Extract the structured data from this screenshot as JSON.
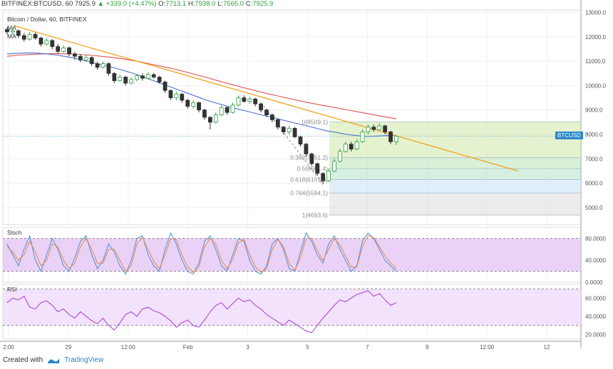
{
  "header": {
    "symbol": "BITFINEX:BTCUSD, 60",
    "last": "7925.9",
    "change": "+339.0 (+4.47%)",
    "o_label": "O:",
    "o": "7713.1",
    "h_label": "H:",
    "h": "7938.0",
    "l_label": "L:",
    "l": "7565.0",
    "c_label": "C:",
    "c": "7925.9"
  },
  "meta": {
    "source": "Bitcoin / Dollar, 60, BITFINEX",
    "ma1": "MA",
    "ma2": "MA"
  },
  "indicators": {
    "stoch_label": "Stoch",
    "rsi_label": "RSI"
  },
  "footer": {
    "created_with": "Created with",
    "brand": "TradingView"
  },
  "price_tag": "BTCUSD",
  "colors": {
    "up": "#2e9e3e",
    "down": "#333333",
    "ma_fast": "#4a6fcf",
    "ma_slow": "#e05050",
    "trendline": "#f2a31d",
    "stoch_k": "#4a90d9",
    "stoch_d": "#e08a4a",
    "stoch_band": "#e6c9f5",
    "rsi_line": "#a63bd8",
    "rsi_band": "#f1ddfa"
  },
  "chart_data": {
    "type": "candlestick",
    "price_axis": {
      "ticks": [
        "13000.0",
        "12000.0",
        "11000.0",
        "10000.0",
        "9000.0",
        "8000.0",
        "7000.0",
        "6000.0",
        "5000.0"
      ],
      "ylim": [
        4300,
        13100
      ]
    },
    "time_axis": {
      "ticks": [
        "2:00",
        "29",
        "12:00",
        "Feb",
        "3",
        "5",
        "7",
        "9",
        "12:00",
        "12"
      ]
    },
    "fibonacci": [
      {
        "level": "0",
        "price": "8509.1"
      },
      {
        "level": "0.382",
        "price": "7051.2"
      },
      {
        "level": "0.5",
        "price": "6601.4"
      },
      {
        "level": "0.618",
        "price": "6151.3"
      },
      {
        "level": "0.764",
        "price": "5594.1"
      },
      {
        "level": "1",
        "price": "4693.6"
      }
    ],
    "fib_colors": [
      "#cde8a8",
      "#b9e3b9",
      "#b3e1c8",
      "#c7e3f5",
      "#dddddd"
    ],
    "trendline": {
      "start": [
        0,
        12450
      ],
      "end": [
        1,
        6500
      ]
    },
    "last_price": 7925.9,
    "candles": [
      [
        12300,
        12200,
        12400,
        12100
      ],
      [
        12200,
        12250,
        12380,
        12080
      ],
      [
        12250,
        12050,
        12300,
        11950
      ],
      [
        12050,
        11900,
        12150,
        11800
      ],
      [
        11900,
        12100,
        12200,
        11850
      ],
      [
        12100,
        11950,
        12180,
        11880
      ],
      [
        11950,
        11700,
        12000,
        11600
      ],
      [
        11700,
        11850,
        11950,
        11650
      ],
      [
        11850,
        11600,
        11900,
        11500
      ],
      [
        11600,
        11400,
        11700,
        11300
      ],
      [
        11400,
        11550,
        11650,
        11350
      ],
      [
        11550,
        11300,
        11600,
        11200
      ],
      [
        11300,
        11200,
        11380,
        11050
      ],
      [
        11200,
        11050,
        11280,
        10950
      ],
      [
        11050,
        11150,
        11250,
        10980
      ],
      [
        11150,
        10900,
        11200,
        10800
      ],
      [
        10900,
        10750,
        10980,
        10650
      ],
      [
        10750,
        10900,
        10980,
        10700
      ],
      [
        10900,
        10500,
        10950,
        10400
      ],
      [
        10500,
        10200,
        10550,
        10100
      ],
      [
        10200,
        10350,
        10450,
        10150
      ],
      [
        10350,
        10100,
        10400,
        10000
      ],
      [
        10100,
        10250,
        10350,
        10050
      ],
      [
        10250,
        10400,
        10480,
        10180
      ],
      [
        10400,
        10300,
        10500,
        10200
      ],
      [
        10300,
        10450,
        10550,
        10250
      ],
      [
        10450,
        10350,
        10520,
        10280
      ],
      [
        10350,
        10150,
        10400,
        10080
      ],
      [
        10150,
        9800,
        10200,
        9700
      ],
      [
        9800,
        9500,
        9850,
        9400
      ],
      [
        9500,
        9650,
        9750,
        9400
      ],
      [
        9650,
        9400,
        9700,
        9300
      ],
      [
        9400,
        9150,
        9450,
        9050
      ],
      [
        9150,
        9300,
        9400,
        9050
      ],
      [
        9300,
        9000,
        9350,
        8900
      ],
      [
        9000,
        8700,
        9050,
        8600
      ],
      [
        8700,
        8500,
        8750,
        8200
      ],
      [
        8500,
        8800,
        8900,
        8450
      ],
      [
        8800,
        9100,
        9200,
        8750
      ],
      [
        9100,
        8900,
        9150,
        8800
      ],
      [
        8900,
        9200,
        9300,
        8850
      ],
      [
        9200,
        9500,
        9600,
        9150
      ],
      [
        9500,
        9350,
        9600,
        9300
      ],
      [
        9350,
        9450,
        9550,
        9250
      ],
      [
        9450,
        9250,
        9500,
        9150
      ],
      [
        9250,
        9000,
        9300,
        8900
      ],
      [
        9000,
        8800,
        9050,
        8700
      ],
      [
        8800,
        8600,
        8850,
        8500
      ],
      [
        8600,
        8300,
        8650,
        8200
      ],
      [
        8300,
        8100,
        8350,
        8000
      ],
      [
        8100,
        8250,
        8350,
        8000
      ],
      [
        8250,
        7900,
        8300,
        7850
      ],
      [
        7900,
        7600,
        7950,
        7500
      ],
      [
        7600,
        7200,
        7650,
        7100
      ],
      [
        7200,
        6800,
        7250,
        6700
      ],
      [
        6800,
        6400,
        6850,
        6300
      ],
      [
        6400,
        6100,
        6450,
        5950
      ],
      [
        6100,
        6500,
        6600,
        6050
      ],
      [
        6500,
        6900,
        7000,
        6450
      ],
      [
        6900,
        7300,
        7400,
        6850
      ],
      [
        7300,
        7600,
        7700,
        7250
      ],
      [
        7600,
        7400,
        7700,
        7300
      ],
      [
        7400,
        7700,
        7800,
        7350
      ],
      [
        7700,
        8100,
        8200,
        7650
      ],
      [
        8100,
        8300,
        8400,
        8000
      ],
      [
        8300,
        8200,
        8400,
        8100
      ],
      [
        8200,
        8350,
        8450,
        8150
      ],
      [
        8350,
        8100,
        8400,
        8000
      ],
      [
        8100,
        7700,
        8150,
        7600
      ],
      [
        7700,
        7926,
        7938,
        7565
      ]
    ],
    "ma_fast": [
      11300,
      11320,
      11340,
      11330,
      11300,
      11250,
      11180,
      11100,
      11000,
      10900,
      10800,
      10700,
      10580,
      10450,
      10300,
      10150,
      10000,
      9850,
      9700,
      9550,
      9400,
      9280,
      9160,
      9050,
      8950,
      8850,
      8750,
      8650,
      8550,
      8450,
      8350,
      8250,
      8150,
      8080,
      8000,
      7950,
      7920,
      7930,
      7950,
      7960
    ],
    "ma_slow": [
      11200,
      11250,
      11280,
      11300,
      11310,
      11300,
      11280,
      11250,
      11200,
      11150,
      11080,
      11000,
      10900,
      10800,
      10700,
      10580,
      10450,
      10320,
      10180,
      10050,
      9920,
      9800,
      9680,
      9570,
      9460,
      9360,
      9260,
      9170,
      9080,
      8990,
      8900,
      8810,
      8720,
      8640
    ],
    "stoch": {
      "ticks": [
        "80.0000",
        "40.0000",
        "0.0000"
      ],
      "ylim": [
        0,
        100
      ],
      "bands": [
        80,
        20
      ],
      "k": [
        70,
        50,
        30,
        60,
        85,
        40,
        20,
        50,
        80,
        60,
        30,
        20,
        45,
        75,
        85,
        50,
        25,
        40,
        70,
        55,
        30,
        15,
        40,
        80,
        85,
        50,
        30,
        20,
        60,
        90,
        70,
        40,
        20,
        15,
        35,
        75,
        85,
        60,
        30,
        20,
        50,
        80,
        75,
        40,
        20,
        15,
        30,
        70,
        80,
        60,
        25,
        20,
        55,
        90,
        75,
        50,
        35,
        70,
        85,
        60,
        40,
        20,
        30,
        75,
        90,
        80,
        60,
        40,
        30,
        20
      ],
      "d": [
        65,
        55,
        40,
        50,
        75,
        55,
        30,
        40,
        70,
        65,
        40,
        25,
        35,
        65,
        80,
        60,
        35,
        35,
        60,
        60,
        40,
        20,
        30,
        70,
        82,
        60,
        38,
        25,
        50,
        80,
        78,
        50,
        28,
        18,
        28,
        65,
        80,
        70,
        40,
        25,
        42,
        72,
        78,
        50,
        28,
        18,
        25,
        60,
        78,
        65,
        35,
        22,
        45,
        80,
        80,
        58,
        40,
        60,
        80,
        68,
        48,
        28,
        28,
        65,
        85,
        82,
        65,
        48,
        35,
        25
      ]
    },
    "rsi": {
      "ticks": [
        "60.0000",
        "40.0000",
        "20.0000"
      ],
      "ylim": [
        15,
        75
      ],
      "bands": [
        70,
        30
      ],
      "values": [
        55,
        60,
        58,
        62,
        50,
        48,
        55,
        57,
        52,
        45,
        48,
        42,
        38,
        45,
        40,
        35,
        32,
        38,
        30,
        25,
        33,
        42,
        45,
        40,
        48,
        50,
        46,
        44,
        40,
        35,
        28,
        33,
        36,
        30,
        28,
        36,
        45,
        52,
        55,
        48,
        54,
        60,
        56,
        58,
        52,
        48,
        42,
        38,
        34,
        30,
        36,
        32,
        28,
        24,
        22,
        30,
        38,
        45,
        52,
        58,
        56,
        60,
        64,
        66,
        68,
        62,
        65,
        58,
        52,
        55
      ]
    }
  }
}
